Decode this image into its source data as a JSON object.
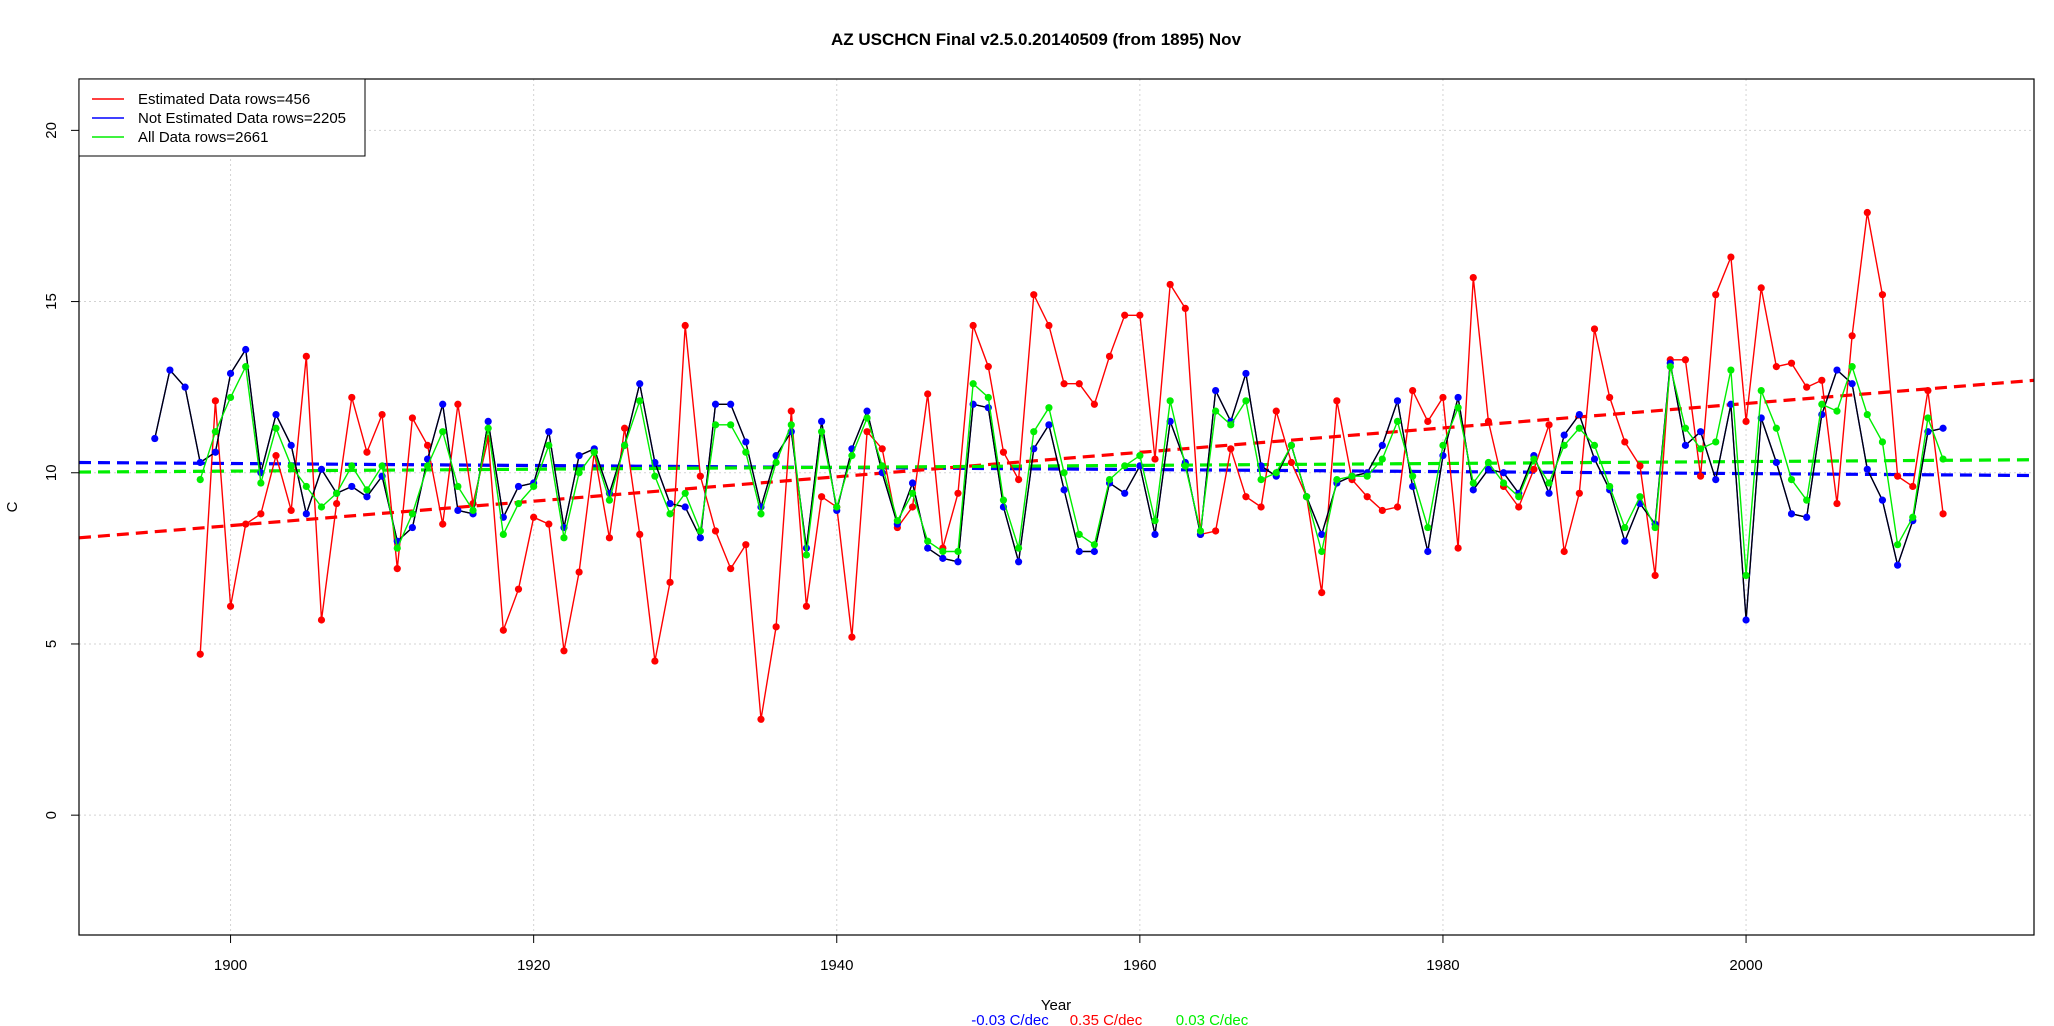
{
  "chart_data": {
    "type": "line",
    "title": "AZ USCHCN Final v2.5.0.20140509 (from 1895) Nov",
    "xlabel": "Year",
    "ylabel": "C",
    "xlim": [
      1890,
      2019
    ],
    "ylim": [
      -3.5,
      21.5
    ],
    "xticks": [
      1900,
      1920,
      1940,
      1960,
      1980,
      2000
    ],
    "yticks": [
      0,
      5,
      10,
      15,
      20
    ],
    "grid": true,
    "legend": {
      "position": "top-left",
      "entries": [
        {
          "label": "Estimated Data rows=456",
          "color": "#ff0000"
        },
        {
          "label": "Not Estimated Data rows=2205",
          "color": "#0000ff"
        },
        {
          "label": "All Data rows=2661",
          "color": "#00ee00"
        }
      ]
    },
    "trend_labels": [
      {
        "text": "-0.03 C/dec",
        "color": "#0000ff"
      },
      {
        "text": "0.35 C/dec",
        "color": "#ff0000"
      },
      {
        "text": "0.03 C/dec",
        "color": "#00ee00"
      }
    ],
    "trends": [
      {
        "name": "Not Estimated Data rows=2205",
        "color": "#0000ff",
        "x": [
          1890,
          2019
        ],
        "y": [
          10.3,
          9.92
        ]
      },
      {
        "name": "Estimated Data rows=456",
        "color": "#ff0000",
        "x": [
          1890,
          2019
        ],
        "y": [
          8.1,
          12.7
        ]
      },
      {
        "name": "All Data rows=2661",
        "color": "#00ee00",
        "x": [
          1890,
          2019
        ],
        "y": [
          10.02,
          10.38
        ]
      }
    ],
    "series": [
      {
        "name": "Estimated Data rows=456",
        "color": "#ff0000",
        "x": [
          1898,
          1899,
          1900,
          1901,
          1902,
          1903,
          1904,
          1905,
          1906,
          1907,
          1908,
          1909,
          1910,
          1911,
          1912,
          1913,
          1914,
          1915,
          1916,
          1917,
          1918,
          1919,
          1920,
          1921,
          1922,
          1923,
          1924,
          1925,
          1926,
          1927,
          1928,
          1929,
          1930,
          1931,
          1932,
          1933,
          1934,
          1935,
          1936,
          1937,
          1938,
          1939,
          1940,
          1941,
          1942,
          1943,
          1944,
          1945,
          1946,
          1947,
          1948,
          1949,
          1950,
          1951,
          1952,
          1953,
          1954,
          1955,
          1956,
          1957,
          1958,
          1959,
          1960,
          1961,
          1962,
          1963,
          1964,
          1965,
          1966,
          1967,
          1968,
          1969,
          1970,
          1971,
          1972,
          1973,
          1974,
          1975,
          1976,
          1977,
          1978,
          1979,
          1980,
          1981,
          1982,
          1983,
          1984,
          1985,
          1986,
          1987,
          1988,
          1989,
          1990,
          1991,
          1992,
          1993,
          1994,
          1995,
          1996,
          1997,
          1998,
          1999,
          2000,
          2001,
          2002,
          2003,
          2004,
          2005,
          2006,
          2007,
          2008,
          2009,
          2010,
          2011,
          2012,
          2013
        ],
        "y": [
          4.7,
          12.1,
          6.1,
          8.5,
          8.8,
          10.5,
          8.9,
          13.4,
          5.7,
          9.1,
          12.2,
          10.6,
          11.7,
          7.2,
          11.6,
          10.8,
          8.5,
          12.0,
          9.1,
          11.0,
          5.4,
          6.6,
          8.7,
          8.5,
          4.8,
          7.1,
          10.6,
          8.1,
          11.3,
          8.2,
          4.5,
          6.8,
          14.3,
          9.9,
          8.3,
          7.2,
          7.9,
          2.8,
          5.5,
          11.8,
          6.1,
          9.3,
          9.0,
          5.2,
          11.2,
          10.7,
          8.4,
          9.0,
          12.3,
          7.8,
          9.4,
          14.3,
          13.1,
          10.6,
          9.8,
          15.2,
          14.3,
          12.6,
          12.6,
          12.0,
          13.4,
          14.6,
          14.6,
          10.4,
          15.5,
          14.8,
          8.2,
          8.3,
          10.7,
          9.3,
          9.0,
          11.8,
          10.3,
          9.3,
          6.5,
          12.1,
          9.8,
          9.3,
          8.9,
          9.0,
          12.4,
          11.5,
          12.2,
          7.8,
          15.7,
          11.5,
          9.6,
          9.0,
          10.1,
          11.4,
          7.7,
          9.4,
          14.2,
          12.2,
          10.9,
          10.2,
          7.0,
          13.3,
          13.3,
          9.9,
          15.2,
          16.3,
          11.5,
          15.4,
          13.1,
          13.2,
          12.5,
          12.7,
          9.1,
          14.0,
          17.6,
          15.2,
          9.9,
          9.6,
          12.4,
          8.8
        ]
      },
      {
        "name": "Not Estimated Data rows=2205",
        "color": "#0000ff",
        "x": [
          1895,
          1896,
          1897,
          1898,
          1899,
          1900,
          1901,
          1902,
          1903,
          1904,
          1905,
          1906,
          1907,
          1908,
          1909,
          1910,
          1911,
          1912,
          1913,
          1914,
          1915,
          1916,
          1917,
          1918,
          1919,
          1920,
          1921,
          1922,
          1923,
          1924,
          1925,
          1926,
          1927,
          1928,
          1929,
          1930,
          1931,
          1932,
          1933,
          1934,
          1935,
          1936,
          1937,
          1938,
          1939,
          1940,
          1941,
          1942,
          1943,
          1944,
          1945,
          1946,
          1947,
          1948,
          1949,
          1950,
          1951,
          1952,
          1953,
          1954,
          1955,
          1956,
          1957,
          1958,
          1959,
          1960,
          1961,
          1962,
          1963,
          1964,
          1965,
          1966,
          1967,
          1968,
          1969,
          1970,
          1971,
          1972,
          1973,
          1974,
          1975,
          1976,
          1977,
          1978,
          1979,
          1980,
          1981,
          1982,
          1983,
          1984,
          1985,
          1986,
          1987,
          1988,
          1989,
          1990,
          1991,
          1992,
          1993,
          1994,
          1995,
          1996,
          1997,
          1998,
          1999,
          2000,
          2001,
          2002,
          2003,
          2004,
          2005,
          2006,
          2007,
          2008,
          2009,
          2010,
          2011,
          2012,
          2013
        ],
        "y": [
          11.0,
          13.0,
          12.5,
          10.3,
          10.6,
          12.9,
          13.6,
          10.0,
          11.7,
          10.8,
          8.8,
          10.1,
          9.4,
          9.6,
          9.3,
          9.9,
          8.0,
          8.4,
          10.4,
          12.0,
          8.9,
          8.8,
          11.5,
          8.7,
          9.6,
          9.7,
          11.2,
          8.4,
          10.5,
          10.7,
          9.4,
          10.8,
          12.6,
          10.3,
          9.1,
          9.0,
          8.1,
          12.0,
          12.0,
          10.9,
          9.0,
          10.5,
          11.2,
          7.8,
          11.5,
          8.9,
          10.7,
          11.8,
          10.0,
          8.5,
          9.7,
          7.8,
          7.5,
          7.4,
          12.0,
          11.9,
          9.0,
          7.4,
          10.7,
          11.4,
          9.5,
          7.7,
          7.7,
          9.7,
          9.4,
          10.2,
          8.2,
          11.5,
          10.3,
          8.2,
          12.4,
          11.5,
          12.9,
          10.2,
          9.9,
          10.8,
          9.3,
          8.2,
          9.7,
          9.9,
          10.0,
          10.8,
          12.1,
          9.6,
          7.7,
          10.5,
          12.2,
          9.5,
          10.1,
          10.0,
          9.4,
          10.5,
          9.4,
          11.1,
          11.7,
          10.4,
          9.5,
          8.0,
          9.1,
          8.5,
          13.2,
          10.8,
          11.2,
          9.8,
          12.0,
          5.7,
          11.6,
          10.3,
          8.8,
          8.7,
          11.7,
          13.0,
          12.6,
          10.1,
          9.2,
          7.3,
          8.6,
          11.2,
          11.3
        ]
      },
      {
        "name": "All Data rows=2661",
        "color": "#00ee00",
        "x": [
          1898,
          1899,
          1900,
          1901,
          1902,
          1903,
          1904,
          1905,
          1906,
          1907,
          1908,
          1909,
          1910,
          1911,
          1912,
          1913,
          1914,
          1915,
          1916,
          1917,
          1918,
          1919,
          1920,
          1921,
          1922,
          1923,
          1924,
          1925,
          1926,
          1927,
          1928,
          1929,
          1930,
          1931,
          1932,
          1933,
          1934,
          1935,
          1936,
          1937,
          1938,
          1939,
          1940,
          1941,
          1942,
          1943,
          1944,
          1945,
          1946,
          1947,
          1948,
          1949,
          1950,
          1951,
          1952,
          1953,
          1954,
          1955,
          1956,
          1957,
          1958,
          1959,
          1960,
          1961,
          1962,
          1963,
          1964,
          1965,
          1966,
          1967,
          1968,
          1969,
          1970,
          1971,
          1972,
          1973,
          1974,
          1975,
          1976,
          1977,
          1978,
          1979,
          1980,
          1981,
          1982,
          1983,
          1984,
          1985,
          1986,
          1987,
          1988,
          1989,
          1990,
          1991,
          1992,
          1993,
          1994,
          1995,
          1996,
          1997,
          1998,
          1999,
          2000,
          2001,
          2002,
          2003,
          2004,
          2005,
          2006,
          2007,
          2008,
          2009,
          2010,
          2011,
          2012,
          2013
        ],
        "y": [
          9.8,
          11.2,
          12.2,
          13.1,
          9.7,
          11.3,
          10.2,
          9.6,
          9.0,
          9.4,
          10.2,
          9.5,
          10.2,
          7.8,
          8.8,
          10.2,
          11.2,
          9.6,
          8.9,
          11.3,
          8.2,
          9.1,
          9.6,
          10.8,
          8.1,
          10.0,
          10.6,
          9.2,
          10.8,
          12.1,
          9.9,
          8.8,
          9.4,
          8.3,
          11.4,
          11.4,
          10.6,
          8.8,
          10.3,
          11.4,
          7.6,
          11.2,
          9.0,
          10.5,
          11.6,
          10.2,
          8.6,
          9.4,
          8.0,
          7.7,
          7.7,
          12.6,
          12.2,
          9.2,
          7.8,
          11.2,
          11.9,
          10.0,
          8.2,
          7.9,
          9.8,
          10.2,
          10.5,
          8.6,
          12.1,
          10.2,
          8.3,
          11.8,
          11.4,
          12.1,
          9.8,
          10.0,
          10.8,
          9.3,
          7.7,
          9.8,
          9.9,
          9.9,
          10.4,
          11.5,
          9.9,
          8.4,
          10.8,
          11.9,
          9.7,
          10.3,
          9.7,
          9.3,
          10.4,
          9.7,
          10.8,
          11.3,
          10.8,
          9.6,
          8.4,
          9.3,
          8.4,
          13.1,
          11.3,
          10.7,
          10.9,
          13.0,
          7.0,
          12.4,
          11.3,
          9.8,
          9.2,
          12.0,
          11.8,
          13.1,
          11.7,
          10.9,
          7.9,
          8.7,
          11.6,
          10.4
        ]
      }
    ]
  }
}
